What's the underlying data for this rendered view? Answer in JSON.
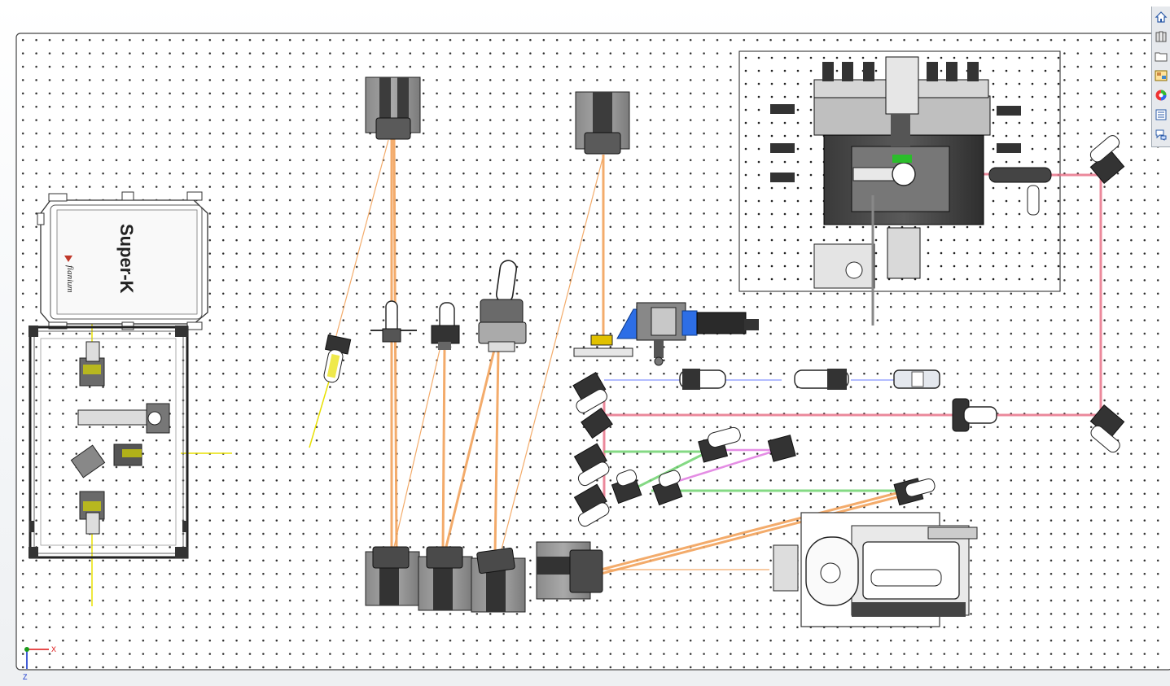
{
  "app": "SolidWorks assembly graphics view",
  "laser_box": {
    "brand_text": "Super-K",
    "maker_text": "fianium"
  },
  "triad": {
    "x_label": "X",
    "z_label": "Z"
  },
  "task_pane": {
    "buttons": [
      {
        "name": "home-icon"
      },
      {
        "name": "design-library-icon"
      },
      {
        "name": "file-explorer-icon"
      },
      {
        "name": "view-palette-icon"
      },
      {
        "name": "appearances-icon"
      },
      {
        "name": "custom-properties-icon"
      },
      {
        "name": "forum-icon"
      }
    ]
  },
  "colors": {
    "board": "#ffffff",
    "board_hole": "#2b2b2b",
    "beam_orange": "#f2a35c",
    "beam_red": "#e8748a",
    "beam_green": "#6fd36f",
    "beam_pink": "#e07ae0",
    "beam_blue": "#9aa6ff",
    "beam_yellow": "#e8e000",
    "axis_x": "#d11",
    "axis_y": "#1a9a1a",
    "axis_z": "#1133cc"
  }
}
